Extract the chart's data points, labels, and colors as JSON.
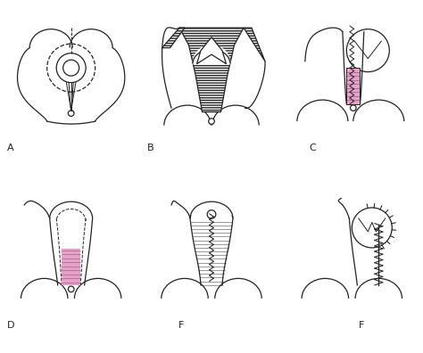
{
  "background": "#ffffff",
  "line_color": "#222222",
  "pink_fill": "#e8a0c8",
  "pink_edge": "#cc80aa",
  "labels": [
    "A",
    "B",
    "C",
    "D",
    "F",
    "F"
  ]
}
